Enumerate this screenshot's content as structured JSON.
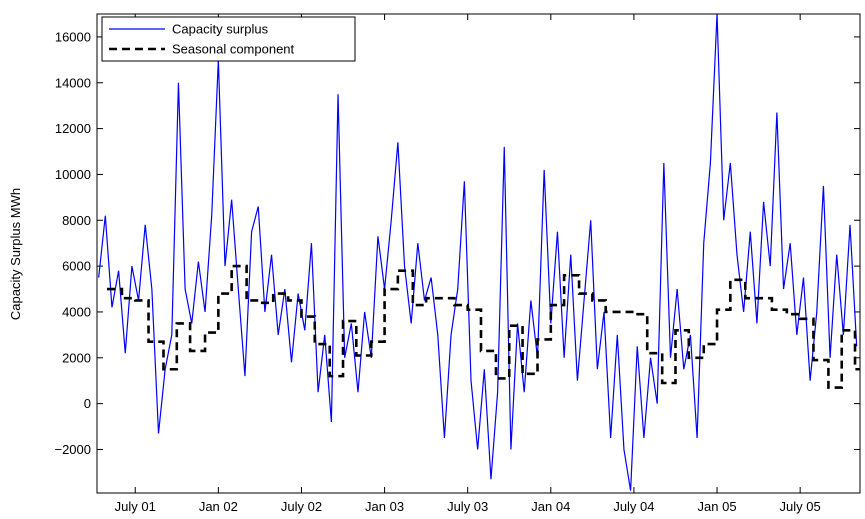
{
  "chart_data": {
    "type": "line",
    "y_label": "Capacity Surplus MWh",
    "xlim": [
      2001.27,
      2005.86
    ],
    "ylim": [
      -3900,
      17000
    ],
    "xticks": [
      {
        "value": 2001.5,
        "label": "July 01"
      },
      {
        "value": 2002,
        "label": "Jan 02"
      },
      {
        "value": 2002.5,
        "label": "July 02"
      },
      {
        "value": 2003,
        "label": "Jan 03"
      },
      {
        "value": 2003.5,
        "label": "July 03"
      },
      {
        "value": 2004,
        "label": "Jan 04"
      },
      {
        "value": 2004.5,
        "label": "July 04"
      },
      {
        "value": 2005,
        "label": "Jan 05"
      },
      {
        "value": 2005.5,
        "label": "July 05"
      }
    ],
    "yticks": [
      {
        "value": -2000,
        "label": "−2000"
      },
      0,
      2000,
      4000,
      6000,
      8000,
      10000,
      12000,
      14000,
      16000
    ],
    "grid": false,
    "legend": "upper-left",
    "series": [
      {
        "name": "Capacity surplus",
        "color": "#0000ff",
        "linestyle": "solid",
        "drawstyle": "default",
        "x": [
          2001.28,
          2001.32,
          2001.36,
          2001.4,
          2001.44,
          2001.48,
          2001.52,
          2001.56,
          2001.6,
          2001.64,
          2001.68,
          2001.72,
          2001.76,
          2001.8,
          2001.84,
          2001.88,
          2001.92,
          2001.96,
          2002,
          2002.04,
          2002.08,
          2002.12,
          2002.16,
          2002.2,
          2002.24,
          2002.28,
          2002.32,
          2002.36,
          2002.4,
          2002.44,
          2002.48,
          2002.52,
          2002.56,
          2002.6,
          2002.64,
          2002.68,
          2002.72,
          2002.76,
          2002.8,
          2002.84,
          2002.88,
          2002.92,
          2002.96,
          2003,
          2003.04,
          2003.08,
          2003.12,
          2003.16,
          2003.2,
          2003.24,
          2003.28,
          2003.32,
          2003.36,
          2003.4,
          2003.44,
          2003.48,
          2003.52,
          2003.56,
          2003.6,
          2003.64,
          2003.68,
          2003.72,
          2003.76,
          2003.8,
          2003.84,
          2003.88,
          2003.92,
          2003.96,
          2004,
          2004.04,
          2004.08,
          2004.12,
          2004.16,
          2004.2,
          2004.24,
          2004.28,
          2004.32,
          2004.36,
          2004.4,
          2004.44,
          2004.48,
          2004.52,
          2004.56,
          2004.6,
          2004.64,
          2004.68,
          2004.72,
          2004.76,
          2004.8,
          2004.84,
          2004.88,
          2004.92,
          2004.96,
          2005,
          2005.04,
          2005.08,
          2005.12,
          2005.16,
          2005.2,
          2005.24,
          2005.28,
          2005.32,
          2005.36,
          2005.4,
          2005.44,
          2005.48,
          2005.52,
          2005.56,
          2005.6,
          2005.64,
          2005.68,
          2005.72,
          2005.76,
          2005.8,
          2005.84
        ],
        "values": [
          5500,
          8200,
          4200,
          5800,
          2200,
          6000,
          4500,
          7800,
          5000,
          -1300,
          1500,
          3000,
          14000,
          5000,
          3500,
          6200,
          4000,
          8200,
          15000,
          6000,
          8900,
          5000,
          1200,
          7500,
          8600,
          4000,
          6500,
          3000,
          5000,
          1800,
          4800,
          3200,
          7000,
          500,
          3000,
          -800,
          13500,
          2000,
          3500,
          500,
          4000,
          2000,
          7300,
          5000,
          8000,
          11400,
          6000,
          3500,
          7000,
          4500,
          5500,
          3000,
          -1500,
          3000,
          5000,
          9700,
          1000,
          -2000,
          1500,
          -3300,
          500,
          11200,
          -2000,
          3500,
          500,
          4500,
          2000,
          10200,
          3500,
          7500,
          2000,
          6500,
          1000,
          4500,
          8000,
          1500,
          4000,
          -1500,
          3000,
          -2000,
          -3800,
          2500,
          -1500,
          2000,
          0,
          10500,
          2000,
          5000,
          1500,
          3000,
          -1500,
          7000,
          10500,
          17000,
          8000,
          10500,
          6500,
          4000,
          7500,
          3500,
          8800,
          6000,
          12700,
          5000,
          7000,
          3000,
          5500,
          1000,
          4000,
          9500,
          2000,
          6500,
          3000,
          7800,
          2500
        ]
      },
      {
        "name": "Seasonal component",
        "color": "#000000",
        "linestyle": "dashed",
        "drawstyle": "steps",
        "x": [
          2001.33,
          2001.42,
          2001.5,
          2001.58,
          2001.67,
          2001.75,
          2001.83,
          2001.92,
          2002,
          2002.08,
          2002.17,
          2002.25,
          2002.33,
          2002.42,
          2002.5,
          2002.58,
          2002.67,
          2002.75,
          2002.83,
          2002.92,
          2003,
          2003.08,
          2003.17,
          2003.25,
          2003.33,
          2003.42,
          2003.5,
          2003.58,
          2003.67,
          2003.75,
          2003.83,
          2003.92,
          2004,
          2004.08,
          2004.17,
          2004.25,
          2004.33,
          2004.42,
          2004.5,
          2004.58,
          2004.67,
          2004.75,
          2004.83,
          2004.92,
          2005,
          2005.08,
          2005.17,
          2005.25,
          2005.33,
          2005.42,
          2005.5,
          2005.58,
          2005.67,
          2005.75,
          2005.83
        ],
        "values": [
          5000,
          4600,
          4500,
          2700,
          1500,
          3500,
          2300,
          3100,
          4800,
          6000,
          4500,
          4400,
          4800,
          4500,
          3800,
          2600,
          1200,
          3600,
          2100,
          2700,
          5000,
          5800,
          4300,
          4600,
          4600,
          4300,
          4100,
          2300,
          1100,
          3400,
          1300,
          2800,
          4300,
          5600,
          4800,
          4500,
          4000,
          4000,
          3900,
          2200,
          900,
          3200,
          2000,
          2600,
          4100,
          5400,
          4600,
          4600,
          4100,
          3900,
          3700,
          1900,
          700,
          3200,
          1500
        ]
      }
    ]
  }
}
